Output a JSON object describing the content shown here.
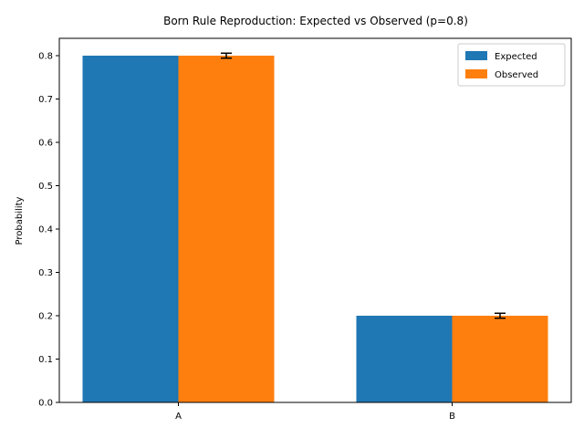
{
  "chart_data": {
    "type": "bar",
    "title": "Born Rule Reproduction: Expected vs Observed (p=0.8)",
    "xlabel": "",
    "ylabel": "Probability",
    "categories": [
      "A",
      "B"
    ],
    "series": [
      {
        "name": "Expected",
        "values": [
          0.8,
          0.2
        ],
        "color": "#1f77b4"
      },
      {
        "name": "Observed",
        "values": [
          0.8,
          0.2
        ],
        "errors": [
          0.0057,
          0.0057
        ],
        "color": "#ff7f0e"
      }
    ],
    "ylim": [
      0,
      0.84
    ],
    "yticks": [
      "0.0",
      "0.1",
      "0.2",
      "0.3",
      "0.4",
      "0.5",
      "0.6",
      "0.7",
      "0.8"
    ],
    "legend_position": "top-right",
    "grid": false
  }
}
